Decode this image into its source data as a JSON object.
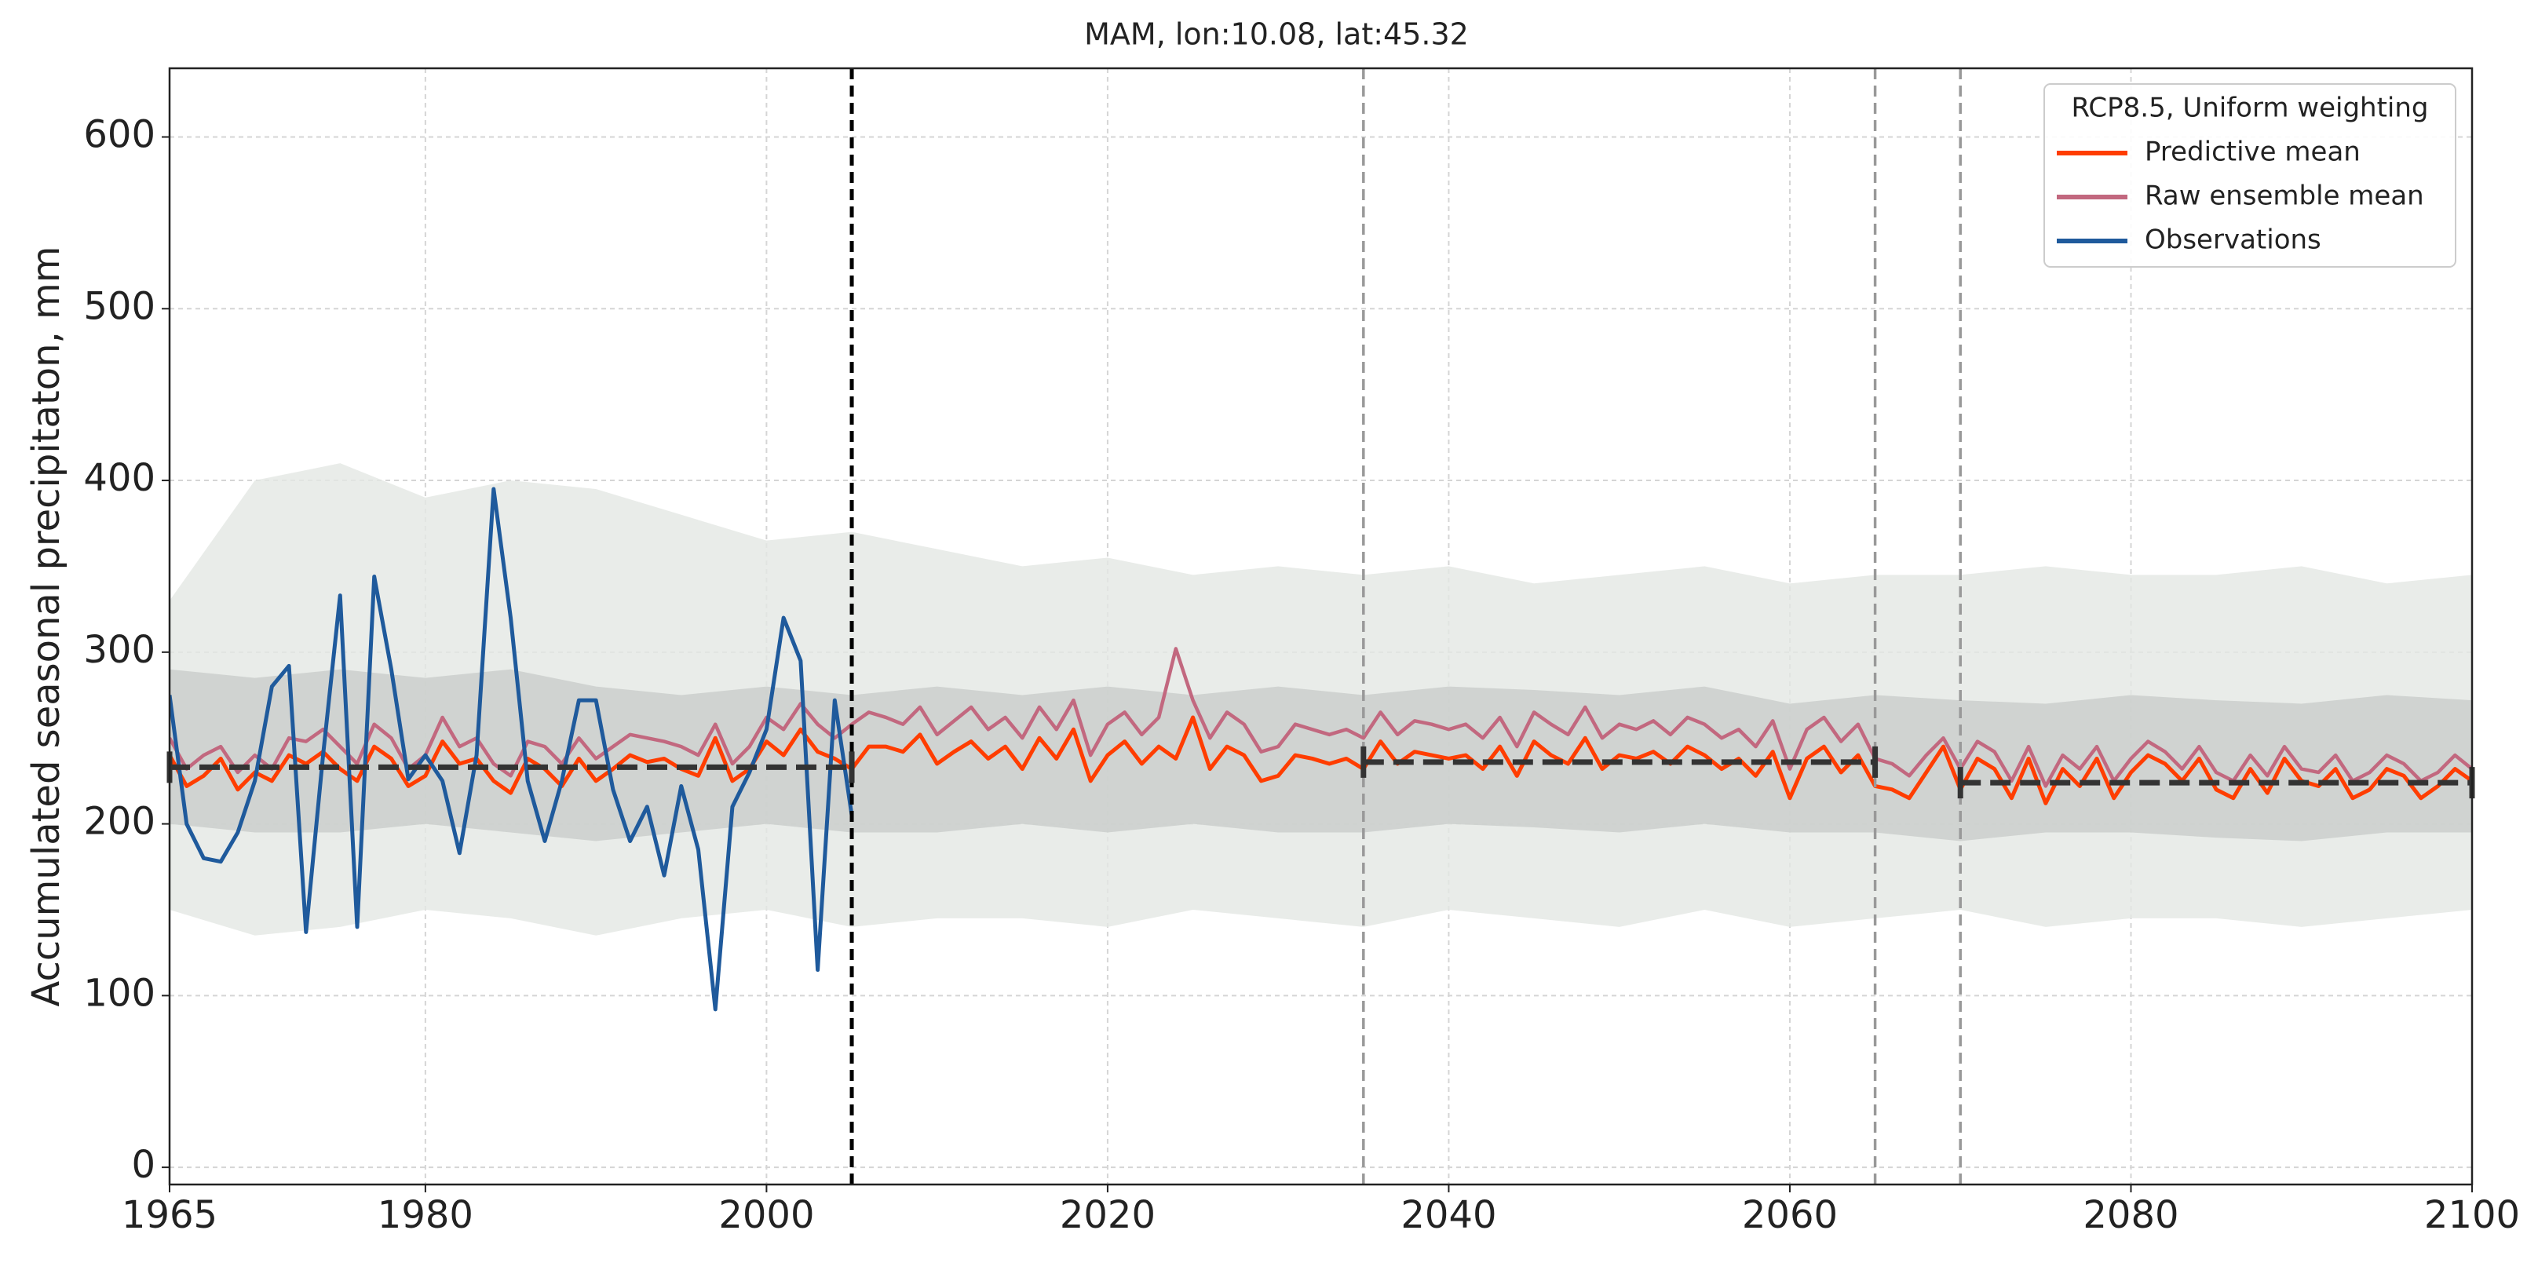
{
  "chart_data": {
    "type": "line",
    "title": "MAM, lon:10.08, lat:45.32",
    "y_label": "Accumulated seasonal precipitaton, mm",
    "legend_title": "RCP8.5, Uniform weighting",
    "legend": "upper right",
    "grid": true,
    "xlim": [
      1965,
      2100
    ],
    "xticks": [
      1965,
      1980,
      2000,
      2020,
      2040,
      2060,
      2080,
      2100
    ],
    "ylim": [
      -10,
      640
    ],
    "yticks": [
      0,
      100,
      200,
      300,
      400,
      500,
      600
    ],
    "x": [
      1965,
      1966,
      1967,
      1968,
      1969,
      1970,
      1971,
      1972,
      1973,
      1974,
      1975,
      1976,
      1977,
      1978,
      1979,
      1980,
      1981,
      1982,
      1983,
      1984,
      1985,
      1986,
      1987,
      1988,
      1989,
      1990,
      1991,
      1992,
      1993,
      1994,
      1995,
      1996,
      1997,
      1998,
      1999,
      2000,
      2001,
      2002,
      2003,
      2004,
      2005,
      2006,
      2007,
      2008,
      2009,
      2010,
      2011,
      2012,
      2013,
      2014,
      2015,
      2016,
      2017,
      2018,
      2019,
      2020,
      2021,
      2022,
      2023,
      2024,
      2025,
      2026,
      2027,
      2028,
      2029,
      2030,
      2031,
      2032,
      2033,
      2034,
      2035,
      2036,
      2037,
      2038,
      2039,
      2040,
      2041,
      2042,
      2043,
      2044,
      2045,
      2046,
      2047,
      2048,
      2049,
      2050,
      2051,
      2052,
      2053,
      2054,
      2055,
      2056,
      2057,
      2058,
      2059,
      2060,
      2061,
      2062,
      2063,
      2064,
      2065,
      2066,
      2067,
      2068,
      2069,
      2070,
      2071,
      2072,
      2073,
      2074,
      2075,
      2076,
      2077,
      2078,
      2079,
      2080,
      2081,
      2082,
      2083,
      2084,
      2085,
      2086,
      2087,
      2088,
      2089,
      2090,
      2091,
      2092,
      2093,
      2094,
      2095,
      2096,
      2097,
      2098,
      2099,
      2100
    ],
    "bands": [
      {
        "color": "#e4e7e4",
        "x": [
          1965,
          1970,
          1975,
          1980,
          1985,
          1990,
          1995,
          2000,
          2005,
          2010,
          2015,
          2020,
          2025,
          2030,
          2035,
          2040,
          2045,
          2050,
          2055,
          2060,
          2065,
          2070,
          2075,
          2080,
          2085,
          2090,
          2095,
          2100
        ],
        "upper": [
          330,
          400,
          410,
          390,
          400,
          395,
          380,
          365,
          370,
          360,
          350,
          355,
          345,
          350,
          345,
          350,
          340,
          345,
          350,
          340,
          345,
          345,
          350,
          345,
          345,
          350,
          340,
          345
        ],
        "lower": [
          150,
          135,
          140,
          150,
          145,
          135,
          145,
          150,
          140,
          145,
          145,
          140,
          150,
          145,
          140,
          150,
          145,
          140,
          150,
          140,
          145,
          150,
          140,
          145,
          145,
          140,
          145,
          150
        ]
      },
      {
        "color": "#c9cdcb",
        "x": [
          1965,
          1970,
          1975,
          1980,
          1985,
          1990,
          1995,
          2000,
          2005,
          2010,
          2015,
          2020,
          2025,
          2030,
          2035,
          2040,
          2045,
          2050,
          2055,
          2060,
          2065,
          2070,
          2075,
          2080,
          2085,
          2090,
          2095,
          2100
        ],
        "upper": [
          290,
          285,
          290,
          285,
          290,
          280,
          275,
          280,
          275,
          280,
          275,
          280,
          275,
          280,
          275,
          280,
          278,
          275,
          280,
          270,
          275,
          272,
          270,
          275,
          272,
          270,
          275,
          272
        ],
        "lower": [
          200,
          195,
          195,
          200,
          195,
          190,
          195,
          200,
          195,
          195,
          200,
          195,
          200,
          195,
          195,
          200,
          198,
          195,
          200,
          195,
          195,
          190,
          195,
          195,
          192,
          190,
          195,
          195
        ]
      }
    ],
    "series": [
      {
        "name": "Predictive mean",
        "color": "#ff3d00",
        "values": [
          240,
          222,
          228,
          238,
          220,
          230,
          225,
          240,
          235,
          242,
          232,
          225,
          245,
          238,
          222,
          228,
          248,
          235,
          238,
          225,
          218,
          238,
          232,
          222,
          238,
          225,
          232,
          240,
          236,
          238,
          232,
          228,
          250,
          225,
          232,
          248,
          240,
          255,
          242,
          238,
          232,
          245,
          245,
          242,
          252,
          235,
          242,
          248,
          238,
          245,
          232,
          250,
          238,
          255,
          225,
          240,
          248,
          235,
          245,
          238,
          262,
          232,
          245,
          240,
          225,
          228,
          240,
          238,
          235,
          238,
          232,
          248,
          235,
          242,
          240,
          238,
          240,
          232,
          245,
          228,
          248,
          240,
          235,
          250,
          232,
          240,
          238,
          242,
          235,
          245,
          240,
          232,
          238,
          228,
          242,
          215,
          238,
          245,
          230,
          240,
          222,
          220,
          215,
          230,
          245,
          220,
          238,
          232,
          215,
          238,
          212,
          232,
          222,
          238,
          215,
          230,
          240,
          235,
          225,
          238,
          220,
          215,
          232,
          218,
          238,
          225,
          222,
          232,
          215,
          220,
          232,
          228,
          215,
          222,
          232,
          225
        ]
      },
      {
        "name": "Raw ensemble mean",
        "color": "#c2687f",
        "values": [
          250,
          232,
          240,
          245,
          230,
          240,
          232,
          250,
          248,
          255,
          245,
          235,
          258,
          250,
          232,
          240,
          262,
          245,
          250,
          235,
          228,
          248,
          245,
          235,
          250,
          238,
          245,
          252,
          250,
          248,
          245,
          240,
          258,
          235,
          245,
          262,
          255,
          270,
          258,
          250,
          258,
          265,
          262,
          258,
          268,
          252,
          260,
          268,
          255,
          262,
          250,
          268,
          255,
          272,
          240,
          258,
          265,
          252,
          262,
          302,
          272,
          250,
          265,
          258,
          242,
          245,
          258,
          255,
          252,
          255,
          250,
          265,
          252,
          260,
          258,
          255,
          258,
          250,
          262,
          245,
          265,
          258,
          252,
          268,
          250,
          258,
          255,
          260,
          252,
          262,
          258,
          250,
          255,
          245,
          260,
          232,
          255,
          262,
          248,
          258,
          238,
          235,
          228,
          240,
          250,
          232,
          248,
          242,
          225,
          245,
          222,
          240,
          232,
          245,
          225,
          238,
          248,
          242,
          232,
          245,
          230,
          225,
          240,
          228,
          245,
          232,
          230,
          240,
          225,
          230,
          240,
          235,
          225,
          230,
          240,
          232
        ]
      },
      {
        "name": "Observations",
        "color": "#1f5a9c",
        "x": [
          1965,
          1966,
          1967,
          1968,
          1969,
          1970,
          1971,
          1972,
          1973,
          1974,
          1975,
          1976,
          1977,
          1978,
          1979,
          1980,
          1981,
          1982,
          1983,
          1984,
          1985,
          1986,
          1987,
          1988,
          1989,
          1990,
          1991,
          1992,
          1993,
          1994,
          1995,
          1996,
          1997,
          1998,
          1999,
          2000,
          2001,
          2002,
          2003,
          2004,
          2005
        ],
        "values": [
          275,
          200,
          180,
          178,
          195,
          225,
          280,
          292,
          137,
          240,
          333,
          140,
          344,
          290,
          226,
          240,
          225,
          183,
          240,
          395,
          320,
          225,
          190,
          225,
          272,
          272,
          220,
          190,
          210,
          170,
          222,
          185,
          92,
          210,
          230,
          255,
          320,
          295,
          115,
          272,
          205
        ]
      }
    ],
    "periods": [
      {
        "start": 1965,
        "end": 2005,
        "value": 233
      },
      {
        "start": 2035,
        "end": 2065,
        "value": 236
      },
      {
        "start": 2070,
        "end": 2100,
        "value": 224
      }
    ],
    "vlines": [
      {
        "x": 2005,
        "color": "#000000"
      },
      {
        "x": 2035,
        "color": "#999999"
      },
      {
        "x": 2065,
        "color": "#999999"
      },
      {
        "x": 2070,
        "color": "#999999"
      }
    ]
  }
}
